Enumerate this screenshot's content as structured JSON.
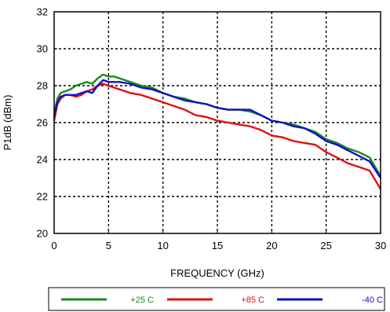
{
  "chart_data": {
    "type": "line",
    "title": "",
    "xlabel": "FREQUENCY (GHz)",
    "ylabel": "P1dB (dBm)",
    "xlim": [
      0,
      30
    ],
    "ylim": [
      20,
      32
    ],
    "xticks": [
      0,
      5,
      10,
      15,
      20,
      25,
      30
    ],
    "yticks": [
      20,
      22,
      24,
      26,
      28,
      30,
      32
    ],
    "x_tick_labels": [
      "0",
      "5",
      "10",
      "15",
      "20",
      "25",
      "30"
    ],
    "y_tick_labels": [
      "20",
      "22",
      "24",
      "26",
      "28",
      "30",
      "32"
    ],
    "grid": true,
    "grid_style": "dotted",
    "legend_position": "bottom",
    "series": [
      {
        "name": "+25 C",
        "color": "#1a8a1a",
        "x": [
          0,
          0.3,
          0.6,
          1,
          1.5,
          2,
          2.5,
          3,
          3.5,
          4,
          4.5,
          5,
          5.5,
          6,
          7,
          8,
          9,
          10,
          11,
          12,
          13,
          14,
          15,
          16,
          17,
          18,
          19,
          20,
          21,
          22,
          23,
          24,
          25,
          26,
          27,
          28,
          29,
          30
        ],
        "y": [
          26.5,
          27.3,
          27.6,
          27.7,
          27.8,
          28.0,
          28.1,
          28.2,
          28.1,
          28.4,
          28.6,
          28.5,
          28.5,
          28.4,
          28.2,
          28.0,
          27.9,
          27.6,
          27.4,
          27.3,
          27.1,
          27.0,
          26.8,
          26.7,
          26.7,
          26.6,
          26.4,
          26.1,
          26.0,
          25.9,
          25.7,
          25.5,
          25.1,
          24.9,
          24.6,
          24.4,
          24.1,
          23.1
        ]
      },
      {
        "name": "+85 C",
        "color": "#e01010",
        "x": [
          0,
          0.3,
          0.6,
          1,
          1.5,
          2,
          2.5,
          3,
          3.5,
          4,
          4.5,
          5,
          5.5,
          6,
          7,
          8,
          9,
          10,
          11,
          12,
          13,
          14,
          15,
          16,
          17,
          18,
          19,
          20,
          21,
          22,
          23,
          24,
          25,
          26,
          27,
          28,
          29,
          30
        ],
        "y": [
          26.1,
          27.0,
          27.3,
          27.5,
          27.5,
          27.4,
          27.5,
          27.7,
          27.8,
          28.0,
          28.1,
          28.0,
          27.9,
          27.8,
          27.6,
          27.5,
          27.3,
          27.1,
          26.9,
          26.7,
          26.4,
          26.3,
          26.1,
          26.0,
          25.9,
          25.8,
          25.6,
          25.3,
          25.2,
          25.0,
          24.9,
          24.8,
          24.4,
          24.1,
          23.8,
          23.6,
          23.4,
          22.4
        ]
      },
      {
        "name": "-40 C",
        "color": "#1010c8",
        "x": [
          0,
          0.3,
          0.6,
          1,
          1.5,
          2,
          2.5,
          3,
          3.5,
          4,
          4.5,
          5,
          5.5,
          6,
          7,
          8,
          9,
          10,
          11,
          12,
          13,
          14,
          15,
          16,
          17,
          18,
          19,
          20,
          21,
          22,
          23,
          24,
          25,
          26,
          27,
          28,
          29,
          30
        ],
        "y": [
          26.3,
          27.1,
          27.4,
          27.5,
          27.5,
          27.5,
          27.6,
          27.7,
          27.6,
          28.0,
          28.3,
          28.2,
          28.2,
          28.2,
          28.1,
          27.9,
          27.8,
          27.6,
          27.4,
          27.2,
          27.1,
          27.0,
          26.8,
          26.7,
          26.7,
          26.7,
          26.4,
          26.1,
          26.0,
          25.8,
          25.7,
          25.4,
          25.0,
          24.8,
          24.5,
          24.2,
          23.9,
          23.0
        ]
      }
    ]
  }
}
